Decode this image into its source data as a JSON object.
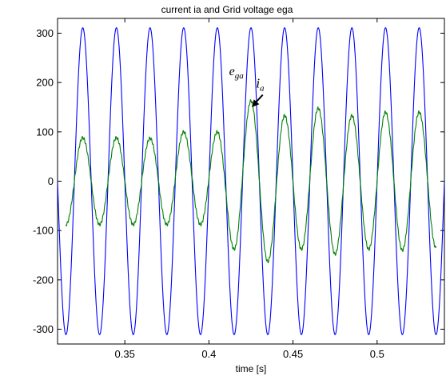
{
  "chart_data": {
    "type": "line",
    "title": "current ia and Grid voltage ega",
    "xlabel": "time [s]",
    "ylabel": "",
    "xlim": [
      0.31,
      0.54
    ],
    "ylim": [
      -330,
      330
    ],
    "xticks": [
      0.35,
      0.4,
      0.45,
      0.5
    ],
    "xtick_labels": [
      "0.35",
      "0.4",
      "0.45",
      "0.5"
    ],
    "yticks": [
      -300,
      -200,
      -100,
      0,
      100,
      200,
      300
    ],
    "ytick_labels": [
      "-300",
      "-200",
      "-100",
      "0",
      "100",
      "200",
      "300"
    ],
    "grid": false,
    "legend": "none",
    "series": [
      {
        "key": "voltage",
        "label_main": "e",
        "label_sub": "ga",
        "color": "#0000ff",
        "frequency_hz": 50,
        "amplitude": 311,
        "peak_times": [
          0.325,
          0.345,
          0.365,
          0.385,
          0.405,
          0.425,
          0.445,
          0.465,
          0.485,
          0.505,
          0.525
        ]
      },
      {
        "key": "current",
        "label_main": "i",
        "label_sub": "a",
        "color": "#008000",
        "frequency_hz": 50,
        "cycle_peaks": [
          {
            "t_max": 0.325,
            "max": 88,
            "t_min": 0.335,
            "min": -88
          },
          {
            "t_max": 0.345,
            "max": 88,
            "t_min": 0.355,
            "min": -88
          },
          {
            "t_max": 0.365,
            "max": 87,
            "t_min": 0.375,
            "min": -88
          },
          {
            "t_max": 0.385,
            "max": 100,
            "t_min": 0.395,
            "min": -88
          },
          {
            "t_max": 0.405,
            "max": 100,
            "t_min": 0.415,
            "min": -138
          },
          {
            "t_max": 0.425,
            "max": 163,
            "t_min": 0.435,
            "min": -163
          },
          {
            "t_max": 0.445,
            "max": 133,
            "t_min": 0.455,
            "min": -138
          },
          {
            "t_max": 0.465,
            "max": 148,
            "t_min": 0.475,
            "min": -148
          },
          {
            "t_max": 0.485,
            "max": 133,
            "t_min": 0.495,
            "min": -138
          },
          {
            "t_max": 0.505,
            "max": 140,
            "t_min": 0.515,
            "min": -140
          },
          {
            "t_max": 0.525,
            "max": 140,
            "t_min": 0.535,
            "min": -135
          }
        ]
      }
    ],
    "annotations": {
      "voltage_label": {
        "main": "e",
        "sub": "ga",
        "x": 0.412,
        "y": 215
      },
      "current_label": {
        "main": "i",
        "sub": "a",
        "x": 0.428,
        "y": 190
      },
      "arrow": {
        "from_x": 0.432,
        "from_y": 175,
        "to_x": 0.4255,
        "to_y": 150
      }
    }
  }
}
